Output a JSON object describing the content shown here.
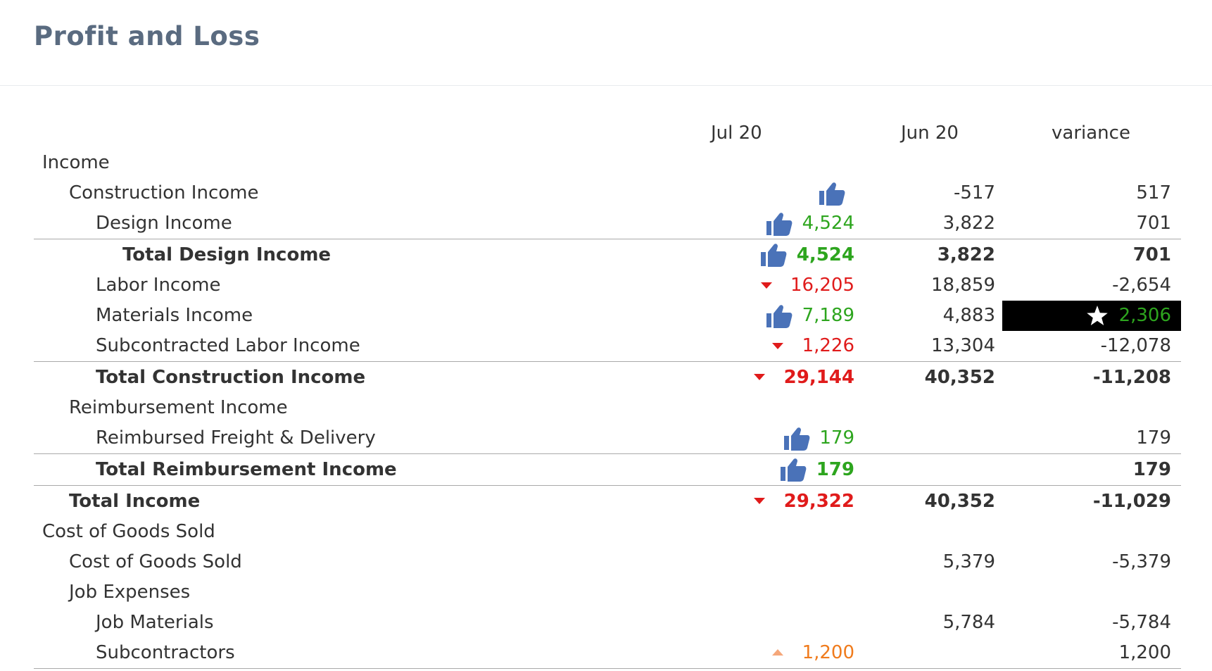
{
  "page": {
    "title": "Profit and Loss"
  },
  "columns": {
    "jul": "Jul 20",
    "jun": "Jun 20",
    "variance": "variance"
  },
  "colors": {
    "positive": "#2da51e",
    "negative": "#e01b1b",
    "warning": "#f07b1c",
    "thumb": "#4a72b8",
    "title": "#5a6b80"
  },
  "rows": [
    {
      "label": "Income",
      "jul": "",
      "jun": "",
      "variance": "",
      "jul_icon": "",
      "jul_color": ""
    },
    {
      "label": "Construction Income",
      "jul": "",
      "jun": "-517",
      "variance": "517",
      "jul_icon": "thumbs-up-icon",
      "jul_color": ""
    },
    {
      "label": "Design Income",
      "jul": "4,524",
      "jun": "3,822",
      "variance": "701",
      "jul_icon": "thumbs-up-icon",
      "jul_color": "green"
    },
    {
      "label": "Total Design Income",
      "jul": "4,524",
      "jun": "3,822",
      "variance": "701",
      "jul_icon": "thumbs-up-icon",
      "jul_color": "green"
    },
    {
      "label": "Labor Income",
      "jul": "16,205",
      "jun": "18,859",
      "variance": "-2,654",
      "jul_icon": "caret-down-icon",
      "jul_color": "red"
    },
    {
      "label": "Materials Income",
      "jul": "7,189",
      "jun": "4,883",
      "variance": "2,306",
      "jul_icon": "thumbs-up-icon",
      "jul_color": "green",
      "variance_icon": "star-icon",
      "variance_color": "green"
    },
    {
      "label": "Subcontracted Labor Income",
      "jul": "1,226",
      "jun": "13,304",
      "variance": "-12,078",
      "jul_icon": "caret-down-icon",
      "jul_color": "red"
    },
    {
      "label": "Total Construction Income",
      "jul": "29,144",
      "jun": "40,352",
      "variance": "-11,208",
      "jul_icon": "caret-down-icon",
      "jul_color": "red"
    },
    {
      "label": "Reimbursement Income",
      "jul": "",
      "jun": "",
      "variance": "",
      "jul_icon": "",
      "jul_color": ""
    },
    {
      "label": "Reimbursed Freight & Delivery",
      "jul": "179",
      "jun": "",
      "variance": "179",
      "jul_icon": "thumbs-up-icon",
      "jul_color": "green"
    },
    {
      "label": "Total Reimbursement Income",
      "jul": "179",
      "jun": "",
      "variance": "179",
      "jul_icon": "thumbs-up-icon",
      "jul_color": "green"
    },
    {
      "label": "Total Income",
      "jul": "29,322",
      "jun": "40,352",
      "variance": "-11,029",
      "jul_icon": "caret-down-icon",
      "jul_color": "red"
    },
    {
      "label": "Cost of Goods Sold",
      "jul": "",
      "jun": "",
      "variance": "",
      "jul_icon": "",
      "jul_color": ""
    },
    {
      "label": "Cost of Goods Sold",
      "jul": "",
      "jun": "5,379",
      "variance": "-5,379",
      "jul_icon": "",
      "jul_color": ""
    },
    {
      "label": "Job Expenses",
      "jul": "",
      "jun": "",
      "variance": "",
      "jul_icon": "",
      "jul_color": ""
    },
    {
      "label": "Job Materials",
      "jul": "",
      "jun": "5,784",
      "variance": "-5,784",
      "jul_icon": "",
      "jul_color": ""
    },
    {
      "label": "Subcontractors",
      "jul": "1,200",
      "jun": "",
      "variance": "1,200",
      "jul_icon": "caret-up-icon",
      "jul_color": "orange"
    }
  ]
}
